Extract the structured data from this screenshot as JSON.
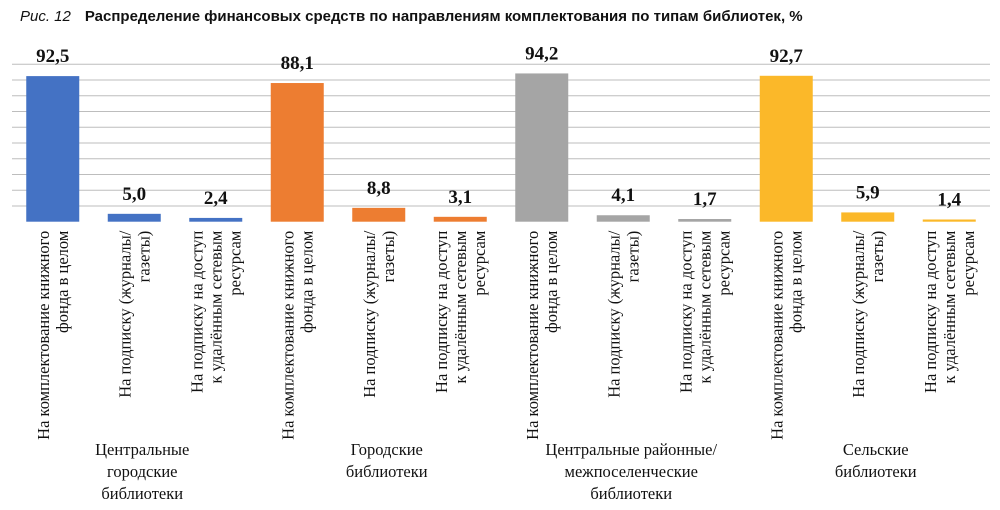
{
  "figure_label": "Рис. 12",
  "chart_data": {
    "type": "bar",
    "title": "Распределение финансовых средств по направлениям комплектования по типам библиотек, %",
    "ylim": [
      0,
      100
    ],
    "grid": true,
    "y_tick_step": 10,
    "y_tick_labels_shown": false,
    "categories": [
      [
        "На комплектование книжного",
        "фонда в целом"
      ],
      [
        "На подписку (журналы/",
        "газеты)"
      ],
      [
        "На подписку на доступ",
        "к удалённым сетевым",
        "ресурсам"
      ],
      [
        "На комплектование книжного",
        "фонда в целом"
      ],
      [
        "На подписку (журналы/",
        "газеты)"
      ],
      [
        "На подписку на доступ",
        "к удалённым сетевым",
        "ресурсам"
      ],
      [
        "На комплектование книжного",
        "фонда в целом"
      ],
      [
        "На подписку (журналы/",
        "газеты)"
      ],
      [
        "На подписку на доступ",
        "к удалённым сетевым",
        "ресурсам"
      ],
      [
        "На комплектование книжного",
        "фонда в целом"
      ],
      [
        "На подписку (журналы/",
        "газеты)"
      ],
      [
        "На подписку на доступ",
        "к удалённым сетевым",
        "ресурсам"
      ]
    ],
    "groups": [
      {
        "label": [
          "Центральные",
          "городские",
          "библиотеки"
        ],
        "color": "#4472c4",
        "values": [
          92.5,
          5.0,
          2.4
        ],
        "value_labels": [
          "92,5",
          "5,0",
          "2,4"
        ]
      },
      {
        "label": [
          "Городские",
          "библиотеки"
        ],
        "color": "#ed7d31",
        "values": [
          88.1,
          8.8,
          3.1
        ],
        "value_labels": [
          "88,1",
          "8,8",
          "3,1"
        ]
      },
      {
        "label": [
          "Центральные районные/",
          "межпоселенческие",
          "библиотеки"
        ],
        "color": "#a5a5a5",
        "values": [
          94.2,
          4.1,
          1.7
        ],
        "value_labels": [
          "94,2",
          "4,1",
          "1,7"
        ]
      },
      {
        "label": [
          "Сельские",
          "библиотеки"
        ],
        "color": "#fbb829",
        "values": [
          92.7,
          5.9,
          1.4
        ],
        "value_labels": [
          "92,7",
          "5,9",
          "1,4"
        ]
      }
    ]
  }
}
